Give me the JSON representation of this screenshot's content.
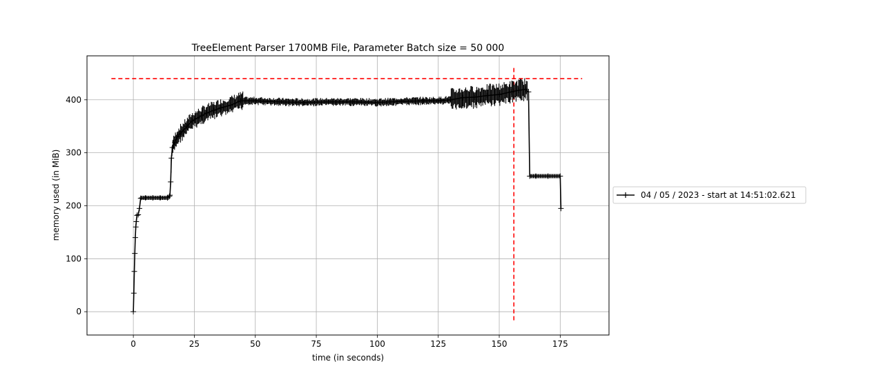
{
  "chart_data": {
    "type": "line",
    "title": "TreeElement Parser 1700MB File, Parameter Batch size = 50 000",
    "xlabel": "time (in seconds)",
    "ylabel": "memory used (in MiB)",
    "xlim": [
      -19,
      195
    ],
    "ylim": [
      -44,
      483
    ],
    "xticks": [
      0,
      25,
      50,
      75,
      100,
      125,
      150,
      175
    ],
    "yticks": [
      0,
      100,
      200,
      300,
      400
    ],
    "grid": true,
    "legend_position": "outside right",
    "series": [
      {
        "name": "04 / 05 / 2023 - start at 14:51:02.621",
        "color": "#000000",
        "marker": "+",
        "x": [
          0,
          0.2,
          0.4,
          0.6,
          0.8,
          1.0,
          1.2,
          1.5,
          2.0,
          2.5,
          3.0,
          5,
          8,
          11,
          14,
          14.8,
          15.0,
          15.3,
          15.6,
          16,
          17,
          18,
          19,
          20,
          22,
          24,
          26,
          28,
          30,
          33,
          36,
          40,
          44,
          50,
          60,
          70,
          80,
          90,
          100,
          110,
          119,
          125,
          130,
          135,
          140,
          145,
          150,
          155,
          158,
          161,
          162,
          162.5,
          165,
          170,
          175,
          175.3
        ],
        "y": [
          0,
          35,
          76,
          110,
          140,
          160,
          170,
          182,
          183,
          195,
          214,
          215,
          215,
          215,
          215,
          218,
          220,
          245,
          290,
          310,
          320,
          330,
          335,
          340,
          350,
          360,
          365,
          370,
          375,
          380,
          385,
          390,
          398,
          398,
          396,
          395,
          396,
          396,
          395,
          397,
          398,
          398,
          400,
          404,
          405,
          408,
          410,
          415,
          418,
          420,
          415,
          256,
          256,
          256,
          256,
          195
        ]
      }
    ],
    "reference_lines": [
      {
        "orientation": "horizontal",
        "y": 440,
        "x_from": -9,
        "x_to": 184,
        "color": "#ff0000",
        "style": "dashed"
      },
      {
        "orientation": "vertical",
        "x": 156,
        "y_from": -20,
        "y_to": 460,
        "color": "#ff0000",
        "style": "dashed"
      }
    ]
  }
}
